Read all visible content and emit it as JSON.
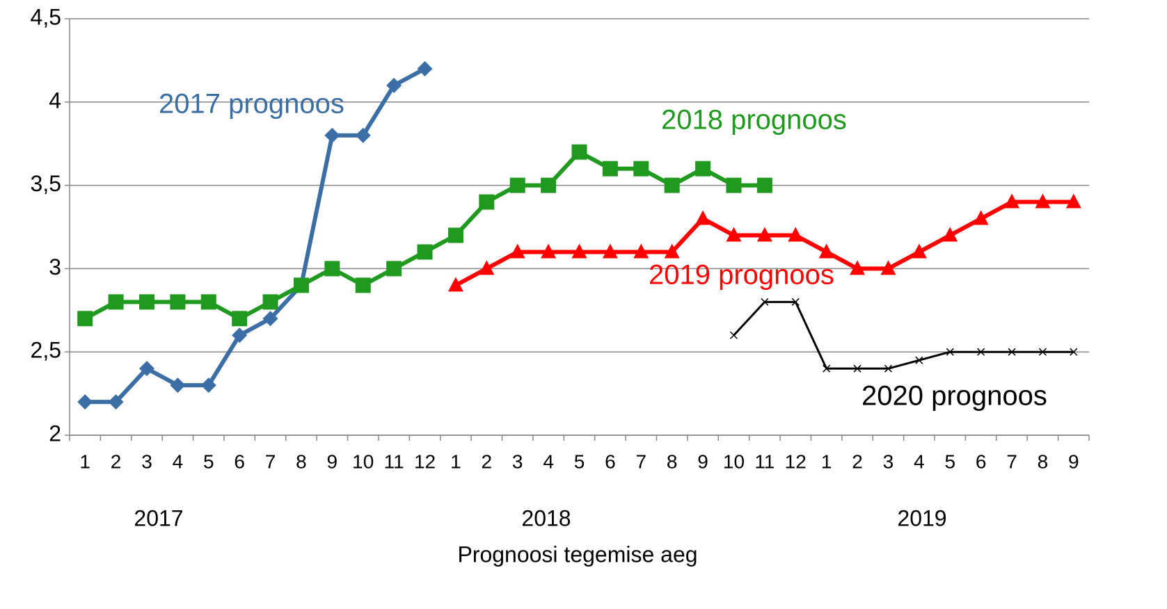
{
  "chart_data": {
    "type": "line",
    "x_label": "Prognoosi tegemise aeg",
    "group_labels": [
      "2017",
      "2018",
      "2019"
    ],
    "categories": [
      "1",
      "2",
      "3",
      "4",
      "5",
      "6",
      "7",
      "8",
      "9",
      "10",
      "11",
      "12",
      "1",
      "2",
      "3",
      "4",
      "5",
      "6",
      "7",
      "8",
      "9",
      "10",
      "11",
      "12",
      "1",
      "2",
      "3",
      "4",
      "5",
      "6",
      "7",
      "8",
      "9"
    ],
    "series": [
      {
        "name": "2017 prognoos",
        "color": "#3a6ea5",
        "marker": "diamond",
        "values": [
          2.2,
          2.2,
          2.4,
          2.3,
          2.3,
          2.6,
          2.7,
          2.9,
          3.8,
          3.8,
          4.1,
          4.2,
          null,
          null,
          null,
          null,
          null,
          null,
          null,
          null,
          null,
          null,
          null,
          null,
          null,
          null,
          null,
          null,
          null,
          null,
          null,
          null,
          null
        ]
      },
      {
        "name": "2018 prognoos",
        "color": "#1f9a1f",
        "marker": "square",
        "values": [
          2.7,
          2.8,
          2.8,
          2.8,
          2.8,
          2.7,
          2.8,
          2.9,
          3.0,
          2.9,
          3.0,
          3.1,
          3.2,
          3.4,
          3.5,
          3.5,
          3.7,
          3.6,
          3.6,
          3.5,
          3.6,
          3.5,
          3.5,
          null,
          null,
          null,
          null,
          null,
          null,
          null,
          null,
          null,
          null
        ]
      },
      {
        "name": "2019 prognoos",
        "color": "#ff0000",
        "marker": "triangle",
        "values": [
          null,
          null,
          null,
          null,
          null,
          null,
          null,
          null,
          null,
          null,
          null,
          null,
          2.9,
          3.0,
          3.1,
          3.1,
          3.1,
          3.1,
          3.1,
          3.1,
          3.3,
          3.2,
          3.2,
          3.2,
          3.1,
          3.0,
          3.0,
          3.1,
          3.2,
          3.3,
          3.4,
          3.4,
          3.4
        ]
      },
      {
        "name": "2020 prognoos",
        "color": "#000000",
        "marker": "x",
        "values": [
          null,
          null,
          null,
          null,
          null,
          null,
          null,
          null,
          null,
          null,
          null,
          null,
          null,
          null,
          null,
          null,
          null,
          null,
          null,
          null,
          null,
          2.6,
          2.8,
          2.8,
          2.4,
          2.4,
          2.4,
          2.45,
          2.5,
          2.5,
          2.5,
          2.5,
          2.5
        ]
      }
    ],
    "ylim": [
      2,
      4.5
    ],
    "yticks": [
      2,
      {
        "value": 2.5,
        "label": "2,5"
      },
      3,
      {
        "value": 3.5,
        "label": "3,5"
      },
      4,
      {
        "value": 4.5,
        "label": "4,5"
      }
    ],
    "grid": true
  }
}
